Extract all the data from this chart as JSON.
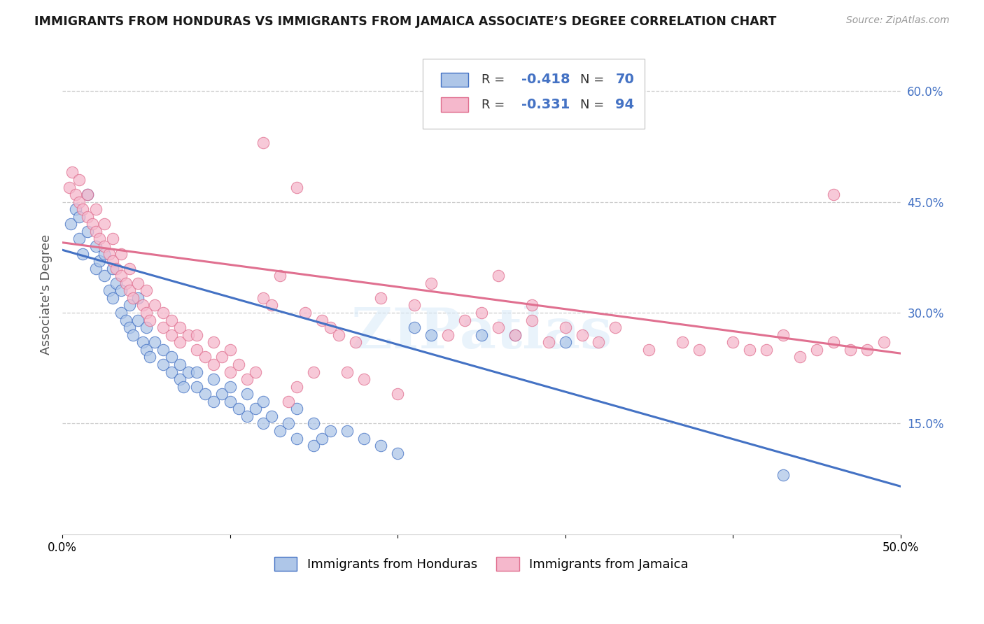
{
  "title": "IMMIGRANTS FROM HONDURAS VS IMMIGRANTS FROM JAMAICA ASSOCIATE’S DEGREE CORRELATION CHART",
  "source": "Source: ZipAtlas.com",
  "ylabel": "Associate's Degree",
  "xlim": [
    0.0,
    0.5
  ],
  "ylim": [
    0.0,
    0.65
  ],
  "x_tick_positions": [
    0.0,
    0.1,
    0.2,
    0.3,
    0.4,
    0.5
  ],
  "x_tick_labels": [
    "0.0%",
    "",
    "",
    "",
    "",
    "50.0%"
  ],
  "y_ticks_right": [
    0.15,
    0.3,
    0.45,
    0.6
  ],
  "y_tick_labels_right": [
    "15.0%",
    "30.0%",
    "45.0%",
    "60.0%"
  ],
  "legend_r_blue": "-0.418",
  "legend_n_blue": "70",
  "legend_r_pink": "-0.331",
  "legend_n_pink": "94",
  "blue_fill": "#aec6e8",
  "pink_fill": "#f5b8cc",
  "blue_edge": "#4472c4",
  "pink_edge": "#e07090",
  "watermark": "ZIPatlas",
  "blue_line_y0": 0.385,
  "blue_line_y1": 0.065,
  "pink_line_y0": 0.395,
  "pink_line_y1": 0.245,
  "blue_scatter_x": [
    0.005,
    0.008,
    0.01,
    0.01,
    0.012,
    0.015,
    0.015,
    0.02,
    0.02,
    0.022,
    0.025,
    0.025,
    0.028,
    0.03,
    0.03,
    0.032,
    0.035,
    0.035,
    0.038,
    0.04,
    0.04,
    0.042,
    0.045,
    0.045,
    0.048,
    0.05,
    0.05,
    0.052,
    0.055,
    0.06,
    0.06,
    0.065,
    0.065,
    0.07,
    0.07,
    0.072,
    0.075,
    0.08,
    0.08,
    0.085,
    0.09,
    0.09,
    0.095,
    0.1,
    0.1,
    0.105,
    0.11,
    0.11,
    0.115,
    0.12,
    0.12,
    0.125,
    0.13,
    0.135,
    0.14,
    0.14,
    0.15,
    0.15,
    0.155,
    0.16,
    0.17,
    0.18,
    0.19,
    0.2,
    0.21,
    0.22,
    0.25,
    0.27,
    0.3,
    0.43
  ],
  "blue_scatter_y": [
    0.42,
    0.44,
    0.4,
    0.43,
    0.38,
    0.41,
    0.46,
    0.36,
    0.39,
    0.37,
    0.35,
    0.38,
    0.33,
    0.32,
    0.36,
    0.34,
    0.3,
    0.33,
    0.29,
    0.28,
    0.31,
    0.27,
    0.29,
    0.32,
    0.26,
    0.25,
    0.28,
    0.24,
    0.26,
    0.23,
    0.25,
    0.22,
    0.24,
    0.21,
    0.23,
    0.2,
    0.22,
    0.2,
    0.22,
    0.19,
    0.18,
    0.21,
    0.19,
    0.18,
    0.2,
    0.17,
    0.16,
    0.19,
    0.17,
    0.15,
    0.18,
    0.16,
    0.14,
    0.15,
    0.13,
    0.17,
    0.12,
    0.15,
    0.13,
    0.14,
    0.14,
    0.13,
    0.12,
    0.11,
    0.28,
    0.27,
    0.27,
    0.27,
    0.26,
    0.08
  ],
  "pink_scatter_x": [
    0.004,
    0.006,
    0.008,
    0.01,
    0.01,
    0.012,
    0.015,
    0.015,
    0.018,
    0.02,
    0.02,
    0.022,
    0.025,
    0.025,
    0.028,
    0.03,
    0.03,
    0.032,
    0.035,
    0.035,
    0.038,
    0.04,
    0.04,
    0.042,
    0.045,
    0.048,
    0.05,
    0.05,
    0.052,
    0.055,
    0.06,
    0.06,
    0.065,
    0.065,
    0.07,
    0.07,
    0.075,
    0.08,
    0.08,
    0.085,
    0.09,
    0.09,
    0.095,
    0.1,
    0.1,
    0.105,
    0.11,
    0.115,
    0.12,
    0.125,
    0.13,
    0.135,
    0.14,
    0.145,
    0.15,
    0.155,
    0.16,
    0.165,
    0.17,
    0.175,
    0.18,
    0.19,
    0.2,
    0.21,
    0.22,
    0.23,
    0.24,
    0.25,
    0.26,
    0.27,
    0.28,
    0.29,
    0.3,
    0.31,
    0.32,
    0.33,
    0.35,
    0.37,
    0.38,
    0.4,
    0.41,
    0.42,
    0.43,
    0.44,
    0.45,
    0.46,
    0.47,
    0.48,
    0.49,
    0.12,
    0.14,
    0.26,
    0.28,
    0.46
  ],
  "pink_scatter_y": [
    0.47,
    0.49,
    0.46,
    0.45,
    0.48,
    0.44,
    0.43,
    0.46,
    0.42,
    0.41,
    0.44,
    0.4,
    0.39,
    0.42,
    0.38,
    0.37,
    0.4,
    0.36,
    0.35,
    0.38,
    0.34,
    0.33,
    0.36,
    0.32,
    0.34,
    0.31,
    0.3,
    0.33,
    0.29,
    0.31,
    0.28,
    0.3,
    0.27,
    0.29,
    0.26,
    0.28,
    0.27,
    0.25,
    0.27,
    0.24,
    0.23,
    0.26,
    0.24,
    0.22,
    0.25,
    0.23,
    0.21,
    0.22,
    0.32,
    0.31,
    0.35,
    0.18,
    0.2,
    0.3,
    0.22,
    0.29,
    0.28,
    0.27,
    0.22,
    0.26,
    0.21,
    0.32,
    0.19,
    0.31,
    0.34,
    0.27,
    0.29,
    0.3,
    0.28,
    0.27,
    0.29,
    0.26,
    0.28,
    0.27,
    0.26,
    0.28,
    0.25,
    0.26,
    0.25,
    0.26,
    0.25,
    0.25,
    0.27,
    0.24,
    0.25,
    0.26,
    0.25,
    0.25,
    0.26,
    0.53,
    0.47,
    0.35,
    0.31,
    0.46
  ]
}
